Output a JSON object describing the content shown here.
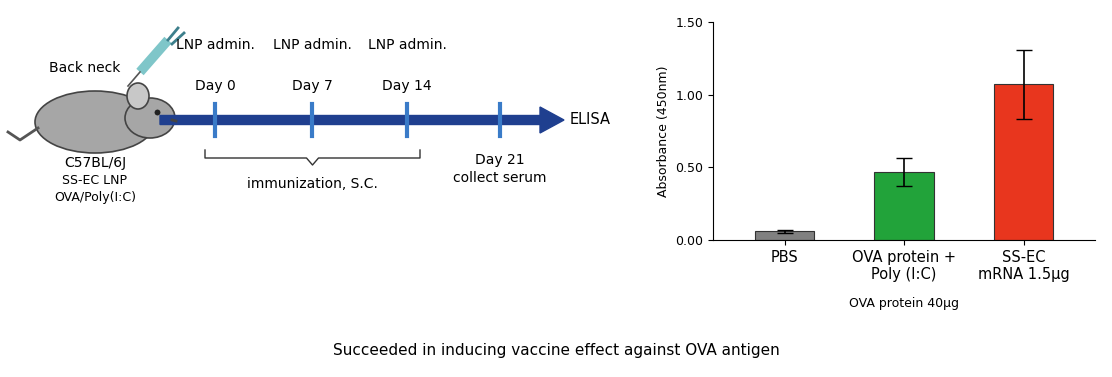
{
  "diagram": {
    "site_label": "Back neck",
    "mouse_labels": [
      "C57BL/6J",
      "SS-EC LNP",
      "OVA/Poly(I:C)"
    ],
    "events": [
      {
        "lines": [
          "LNP admin.",
          "Day 0"
        ],
        "side": "above"
      },
      {
        "lines": [
          "LNP admin.",
          "Day 7"
        ],
        "side": "above"
      },
      {
        "lines": [
          "LNP admin.",
          "Day 14"
        ],
        "side": "above"
      },
      {
        "lines": [
          "Day 21",
          "collect serum"
        ],
        "side": "below"
      }
    ],
    "end_label": "ELISA",
    "brace_label": "immunization, S.C."
  },
  "chart_data": {
    "type": "bar",
    "categories": [
      "PBS",
      "OVA protein +\nPoly (I:C)",
      "SS-EC\nmRNA 1.5µg"
    ],
    "category_notes": [
      null,
      "OVA protein 40µg",
      null
    ],
    "values": [
      0.06,
      0.47,
      1.07
    ],
    "errors": [
      0.01,
      0.095,
      0.24
    ],
    "colors": [
      "#808080",
      "#22a33a",
      "#e8361e"
    ],
    "ylabel": "Absorbance (450nm)",
    "ylim": [
      0,
      1.5
    ],
    "yticks": [
      {
        "value": 0,
        "label": "0.00"
      },
      {
        "value": 0.5,
        "label": "0.50"
      },
      {
        "value": 1.0,
        "label": "1.00"
      },
      {
        "value": 1.5,
        "label": "1.50"
      }
    ]
  },
  "caption": "Succeeded in inducing vaccine effect against OVA antigen"
}
